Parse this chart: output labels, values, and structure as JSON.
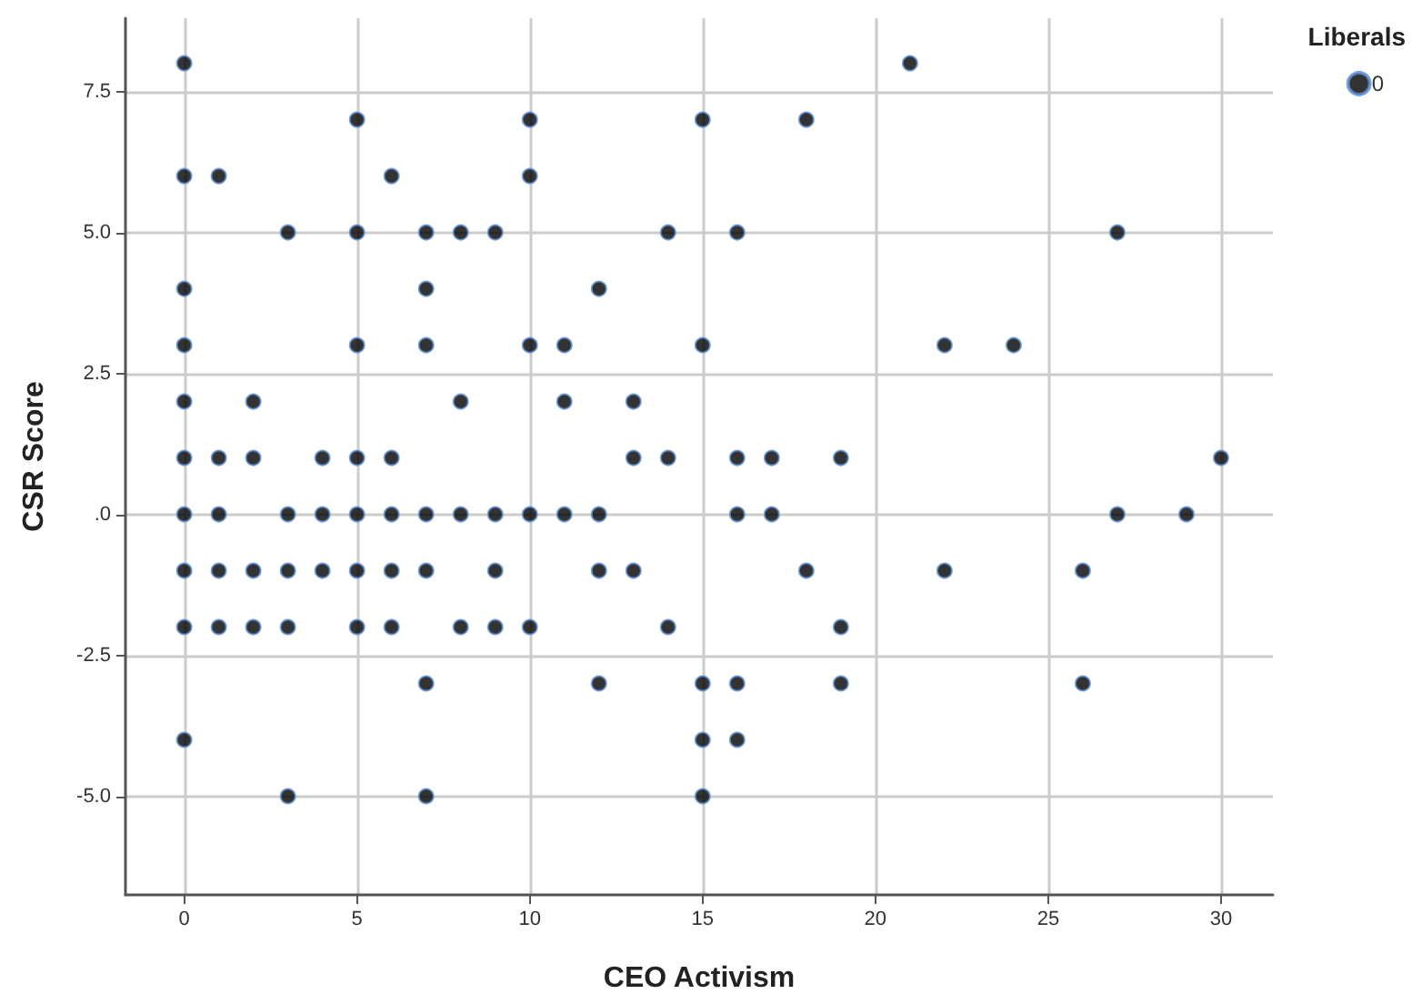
{
  "chart_data": {
    "type": "scatter",
    "xlabel": "CEO Activism",
    "ylabel": "CSR Score",
    "legend_title": "Liberals",
    "series": [
      {
        "name": "0",
        "color": "#000000",
        "x": [
          0,
          21,
          5,
          10,
          15,
          18,
          0,
          1,
          6,
          10,
          3,
          5,
          7,
          8,
          9,
          14,
          16,
          27,
          0,
          7,
          12,
          0,
          5,
          7,
          10,
          11,
          15,
          22,
          24,
          0,
          2,
          8,
          11,
          13,
          0,
          1,
          2,
          4,
          5,
          6,
          13,
          14,
          16,
          17,
          19,
          30,
          0,
          1,
          3,
          4,
          5,
          6,
          7,
          8,
          9,
          10,
          11,
          12,
          16,
          17,
          27,
          29,
          0,
          1,
          2,
          3,
          4,
          5,
          6,
          7,
          9,
          12,
          13,
          18,
          22,
          26,
          0,
          1,
          2,
          3,
          5,
          6,
          8,
          9,
          10,
          14,
          19,
          7,
          12,
          15,
          16,
          19,
          26,
          0,
          15,
          16,
          3,
          7,
          15
        ],
        "values": [
          8,
          8,
          7,
          7,
          7,
          7,
          6,
          6,
          6,
          6,
          5,
          5,
          5,
          5,
          5,
          5,
          5,
          5,
          4,
          4,
          4,
          3,
          3,
          3,
          3,
          3,
          3,
          3,
          3,
          2,
          2,
          2,
          2,
          2,
          1,
          1,
          1,
          1,
          1,
          1,
          1,
          1,
          1,
          1,
          1,
          1,
          0,
          0,
          0,
          0,
          0,
          0,
          0,
          0,
          0,
          0,
          0,
          0,
          0,
          0,
          0,
          0,
          -1,
          -1,
          -1,
          -1,
          -1,
          -1,
          -1,
          -1,
          -1,
          -1,
          -1,
          -1,
          -1,
          -1,
          -2,
          -2,
          -2,
          -2,
          -2,
          -2,
          -2,
          -2,
          -2,
          -2,
          -2,
          -3,
          -3,
          -3,
          -3,
          -3,
          -3,
          -4,
          -4,
          -4,
          -5,
          -5,
          -5
        ]
      }
    ],
    "xlim": [
      -1.7,
      31.5
    ],
    "xticks": [
      0,
      5,
      10,
      15,
      20,
      25,
      30
    ],
    "ylim": [
      -6.75,
      8.8
    ],
    "yticks": [
      {
        "value": -5,
        "label": "-5.0"
      },
      -2.5,
      {
        "value": 0,
        "label": ".0"
      },
      2.5,
      {
        "value": 5,
        "label": "5.0"
      },
      7.5
    ],
    "grid": true,
    "legend": "top right",
    "marker": "circle"
  }
}
